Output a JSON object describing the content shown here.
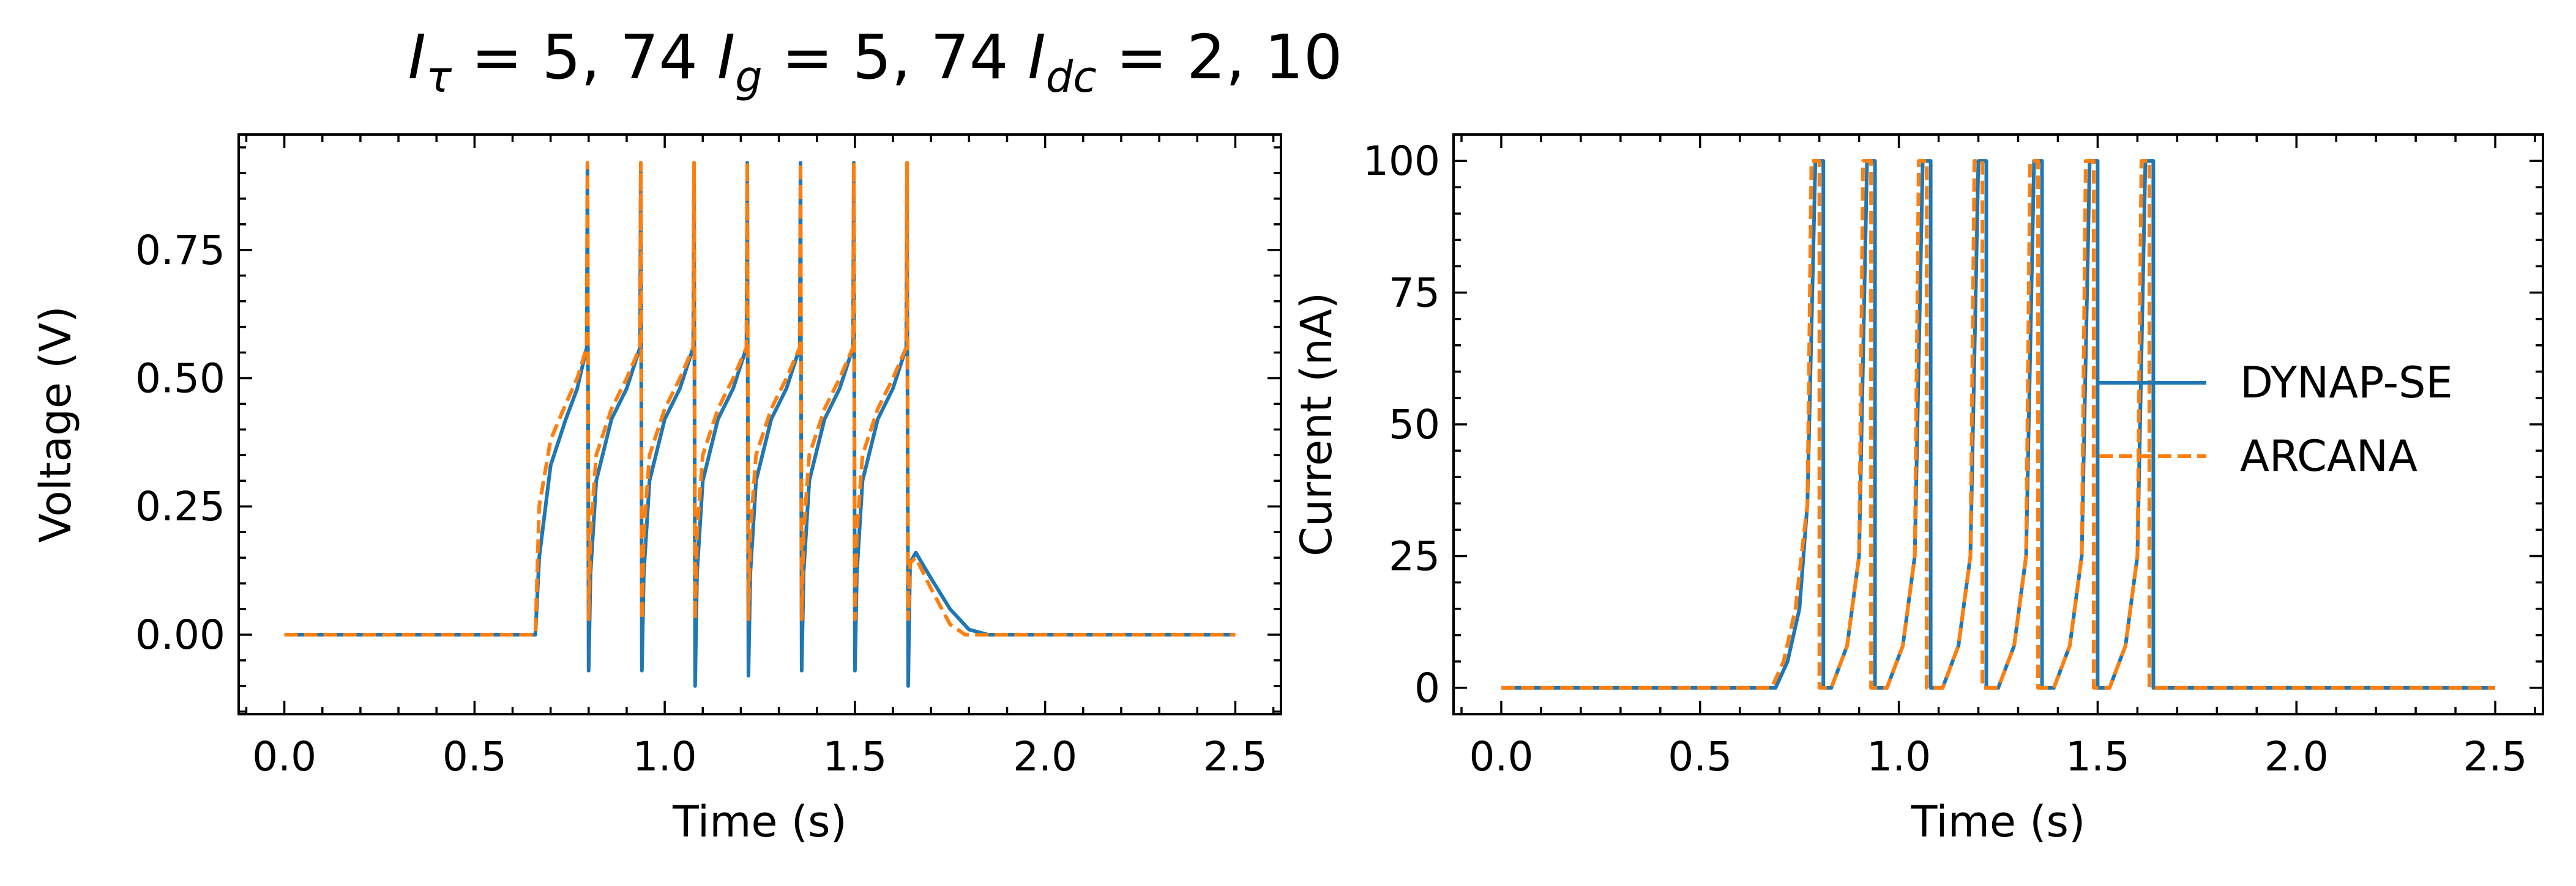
{
  "figure": {
    "title_parts": [
      {
        "base": "I",
        "sub": "τ",
        "value": " = 5, 74 "
      },
      {
        "base": "I",
        "sub": "g",
        "value": " = 5, 74 "
      },
      {
        "base": "I",
        "sub": "dc",
        "value": " = 2, 10"
      }
    ]
  },
  "colors": {
    "dynap": "#1f77b4",
    "arcana": "#ff7f0e"
  },
  "chart_data": [
    {
      "type": "line",
      "xlabel": "Time (s)",
      "ylabel": "Voltage (V)",
      "xlim": [
        -0.12,
        2.62
      ],
      "ylim": [
        -0.155,
        0.975
      ],
      "xticks": [
        0.0,
        0.5,
        1.0,
        1.5,
        2.0,
        2.5
      ],
      "xtick_labels": [
        "0.0",
        "0.5",
        "1.0",
        "1.5",
        "2.0",
        "2.5"
      ],
      "yticks": [
        0.0,
        0.25,
        0.5,
        0.75
      ],
      "ytick_labels": [
        "0.00",
        "0.25",
        "0.50",
        "0.75"
      ],
      "series": [
        {
          "name": "DYNAP-SE",
          "style": "solid",
          "x": [
            0.0,
            0.66,
            0.67,
            0.7,
            0.74,
            0.77,
            0.795,
            0.797,
            0.8,
            0.805,
            0.82,
            0.86,
            0.9,
            0.935,
            0.937,
            0.94,
            0.945,
            0.96,
            1.0,
            1.04,
            1.075,
            1.077,
            1.08,
            1.085,
            1.1,
            1.14,
            1.18,
            1.215,
            1.217,
            1.22,
            1.225,
            1.24,
            1.28,
            1.32,
            1.355,
            1.357,
            1.36,
            1.365,
            1.38,
            1.42,
            1.46,
            1.495,
            1.497,
            1.5,
            1.505,
            1.52,
            1.56,
            1.6,
            1.635,
            1.637,
            1.64,
            1.645,
            1.66,
            1.7,
            1.75,
            1.8,
            1.85,
            1.9,
            2.5
          ],
          "y": [
            0.0,
            0.0,
            0.15,
            0.33,
            0.42,
            0.48,
            0.56,
            0.92,
            -0.07,
            0.12,
            0.3,
            0.42,
            0.48,
            0.56,
            0.92,
            -0.07,
            0.12,
            0.3,
            0.42,
            0.48,
            0.56,
            0.92,
            -0.1,
            0.12,
            0.3,
            0.42,
            0.48,
            0.56,
            0.92,
            -0.08,
            0.12,
            0.3,
            0.42,
            0.48,
            0.56,
            0.92,
            -0.07,
            0.12,
            0.3,
            0.42,
            0.48,
            0.56,
            0.92,
            -0.07,
            0.12,
            0.3,
            0.42,
            0.48,
            0.56,
            0.92,
            -0.1,
            0.14,
            0.16,
            0.11,
            0.05,
            0.01,
            0.0,
            0.0,
            0.0
          ]
        },
        {
          "name": "ARCANA",
          "style": "dashed",
          "x": [
            0.0,
            0.66,
            0.67,
            0.7,
            0.74,
            0.77,
            0.795,
            0.797,
            0.8,
            0.805,
            0.82,
            0.86,
            0.9,
            0.935,
            0.937,
            0.94,
            0.945,
            0.96,
            1.0,
            1.04,
            1.075,
            1.077,
            1.08,
            1.085,
            1.1,
            1.14,
            1.18,
            1.215,
            1.217,
            1.22,
            1.225,
            1.24,
            1.28,
            1.32,
            1.355,
            1.357,
            1.36,
            1.365,
            1.38,
            1.42,
            1.46,
            1.495,
            1.497,
            1.5,
            1.505,
            1.52,
            1.56,
            1.6,
            1.635,
            1.637,
            1.64,
            1.645,
            1.66,
            1.7,
            1.75,
            1.79,
            1.85,
            2.5
          ],
          "y": [
            0.0,
            0.0,
            0.25,
            0.38,
            0.45,
            0.5,
            0.56,
            0.92,
            0.03,
            0.2,
            0.35,
            0.44,
            0.5,
            0.56,
            0.92,
            0.03,
            0.2,
            0.35,
            0.44,
            0.5,
            0.56,
            0.92,
            0.03,
            0.2,
            0.35,
            0.44,
            0.5,
            0.56,
            0.92,
            0.03,
            0.2,
            0.35,
            0.44,
            0.5,
            0.56,
            0.92,
            0.03,
            0.2,
            0.35,
            0.44,
            0.5,
            0.56,
            0.92,
            0.03,
            0.2,
            0.35,
            0.44,
            0.5,
            0.56,
            0.92,
            0.03,
            0.14,
            0.15,
            0.09,
            0.02,
            0.0,
            0.0,
            0.0
          ]
        }
      ]
    },
    {
      "type": "line",
      "xlabel": "Time (s)",
      "ylabel": "Current (nA)",
      "xlim": [
        -0.12,
        2.62
      ],
      "ylim": [
        -5,
        105
      ],
      "xticks": [
        0.0,
        0.5,
        1.0,
        1.5,
        2.0,
        2.5
      ],
      "xtick_labels": [
        "0.0",
        "0.5",
        "1.0",
        "1.5",
        "2.0",
        "2.5"
      ],
      "yticks": [
        0,
        25,
        50,
        75,
        100
      ],
      "ytick_labels": [
        "0",
        "25",
        "50",
        "75",
        "100"
      ],
      "legend": {
        "placement": "center-right",
        "entries": [
          "DYNAP-SE",
          "ARCANA"
        ]
      },
      "series": [
        {
          "name": "DYNAP-SE",
          "style": "solid",
          "x": [
            0.0,
            0.69,
            0.72,
            0.75,
            0.77,
            0.79,
            0.79,
            0.81,
            0.81,
            0.83,
            0.87,
            0.9,
            0.92,
            0.92,
            0.94,
            0.94,
            0.97,
            1.01,
            1.04,
            1.06,
            1.06,
            1.08,
            1.08,
            1.11,
            1.15,
            1.18,
            1.2,
            1.2,
            1.22,
            1.22,
            1.25,
            1.29,
            1.32,
            1.34,
            1.34,
            1.36,
            1.36,
            1.39,
            1.43,
            1.46,
            1.48,
            1.48,
            1.5,
            1.5,
            1.53,
            1.57,
            1.6,
            1.62,
            1.62,
            1.64,
            1.64,
            2.5
          ],
          "y": [
            0,
            0,
            5,
            15,
            35,
            100,
            100,
            100,
            0,
            0,
            8,
            25,
            100,
            100,
            100,
            0,
            0,
            8,
            25,
            100,
            100,
            100,
            0,
            0,
            8,
            25,
            100,
            100,
            100,
            0,
            0,
            8,
            25,
            100,
            100,
            100,
            0,
            0,
            8,
            25,
            100,
            100,
            100,
            0,
            0,
            8,
            25,
            100,
            100,
            100,
            0,
            0
          ]
        },
        {
          "name": "ARCANA",
          "style": "dashed",
          "x": [
            0.0,
            0.68,
            0.71,
            0.74,
            0.77,
            0.78,
            0.78,
            0.8,
            0.8,
            0.83,
            0.87,
            0.9,
            0.91,
            0.91,
            0.93,
            0.93,
            0.97,
            1.01,
            1.04,
            1.05,
            1.05,
            1.07,
            1.07,
            1.11,
            1.15,
            1.18,
            1.19,
            1.19,
            1.21,
            1.21,
            1.25,
            1.29,
            1.32,
            1.33,
            1.33,
            1.35,
            1.35,
            1.39,
            1.43,
            1.46,
            1.47,
            1.47,
            1.49,
            1.49,
            1.53,
            1.57,
            1.6,
            1.61,
            1.61,
            1.63,
            1.63,
            2.5
          ],
          "y": [
            0,
            0,
            5,
            15,
            35,
            100,
            100,
            100,
            0,
            0,
            8,
            25,
            100,
            100,
            100,
            0,
            0,
            8,
            25,
            100,
            100,
            100,
            0,
            0,
            8,
            25,
            100,
            100,
            100,
            0,
            0,
            8,
            25,
            100,
            100,
            100,
            0,
            0,
            8,
            25,
            100,
            100,
            100,
            0,
            0,
            8,
            25,
            100,
            100,
            100,
            0,
            0
          ]
        }
      ]
    }
  ]
}
